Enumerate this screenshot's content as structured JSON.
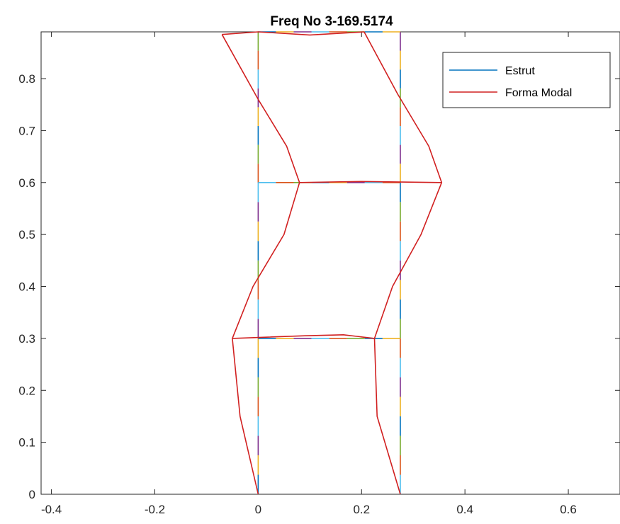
{
  "chart_data": {
    "type": "line",
    "title": "Freq No 3-169.5174",
    "xlabel": "",
    "ylabel": "",
    "xlim": [
      -0.42,
      0.7
    ],
    "ylim": [
      0,
      0.89
    ],
    "grid": false,
    "legend_position": "top-right",
    "x_ticks": [
      -0.4,
      -0.2,
      0,
      0.2,
      0.4,
      0.6
    ],
    "x_tick_labels": [
      "-0.4",
      "-0.2",
      "0",
      "0.2",
      "0.4",
      "0.6"
    ],
    "y_ticks": [
      0,
      0.1,
      0.2,
      0.3,
      0.4,
      0.5,
      0.6,
      0.7,
      0.8
    ],
    "y_tick_labels": [
      "0",
      "0.1",
      "0.2",
      "0.3",
      "0.4",
      "0.5",
      "0.6",
      "0.7",
      "0.8"
    ],
    "series": [
      {
        "name": "Estrut",
        "color": "#0072BD",
        "segments": [
          [
            [
              0,
              0
            ],
            [
              0,
              0.3
            ],
            [
              0,
              0.6
            ],
            [
              0,
              0.89
            ]
          ],
          [
            [
              0.275,
              0
            ],
            [
              0.275,
              0.3
            ],
            [
              0.275,
              0.6
            ],
            [
              0.275,
              0.89
            ]
          ],
          [
            [
              0,
              0.3
            ],
            [
              0.275,
              0.3
            ]
          ],
          [
            [
              0,
              0.6
            ],
            [
              0.275,
              0.6
            ]
          ],
          [
            [
              0,
              0.89
            ],
            [
              0.275,
              0.89
            ]
          ]
        ]
      },
      {
        "name": "Forma Modal",
        "color": "#D12020",
        "segments": [
          [
            [
              0,
              0
            ],
            [
              -0.035,
              0.15
            ],
            [
              -0.05,
              0.3
            ],
            [
              -0.01,
              0.4
            ],
            [
              0.05,
              0.5
            ],
            [
              0.08,
              0.6
            ],
            [
              0.055,
              0.67
            ],
            [
              0,
              0.76
            ],
            [
              -0.07,
              0.885
            ]
          ],
          [
            [
              0.275,
              0
            ],
            [
              0.23,
              0.15
            ],
            [
              0.225,
              0.3
            ],
            [
              0.26,
              0.4
            ],
            [
              0.315,
              0.5
            ],
            [
              0.355,
              0.6
            ],
            [
              0.33,
              0.67
            ],
            [
              0.27,
              0.77
            ],
            [
              0.205,
              0.89
            ]
          ],
          [
            [
              -0.05,
              0.3
            ],
            [
              0.09,
              0.305
            ],
            [
              0.165,
              0.307
            ],
            [
              0.225,
              0.3
            ]
          ],
          [
            [
              0.08,
              0.6
            ],
            [
              0.2,
              0.602
            ],
            [
              0.355,
              0.6
            ]
          ],
          [
            [
              -0.07,
              0.885
            ],
            [
              0,
              0.89
            ],
            [
              0.1,
              0.884
            ],
            [
              0.205,
              0.89
            ]
          ]
        ]
      }
    ],
    "segment_color_cycle": [
      "#0072BD",
      "#EDB120",
      "#7E2F8E",
      "#4DBEEE",
      "#D95319",
      "#77AC30"
    ]
  }
}
